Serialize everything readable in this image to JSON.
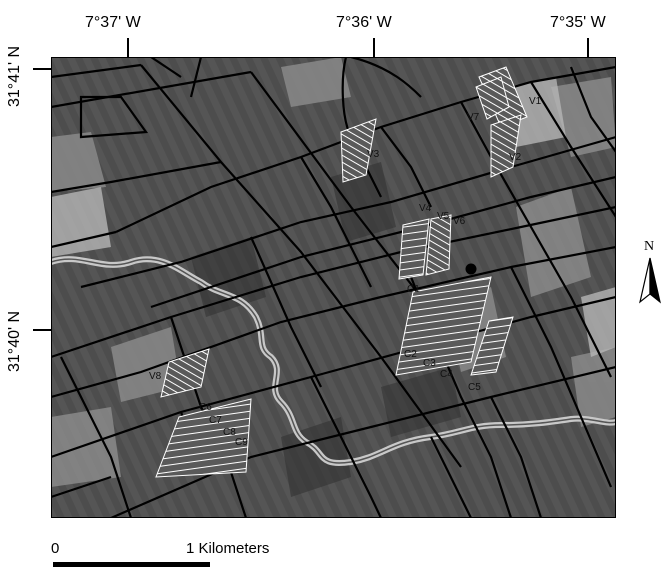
{
  "map": {
    "longitude_labels": [
      "7°37' W",
      "7°36' W",
      "7°35' W"
    ],
    "latitude_labels": [
      "31°41' N",
      "31°40' N"
    ],
    "north_arrow_label": "N",
    "field_labels": [
      "V1",
      "V2",
      "V3",
      "V4",
      "V5",
      "V6",
      "V7",
      "V8",
      "C1",
      "C2",
      "C3",
      "C4",
      "C5",
      "C6",
      "C7",
      "C8",
      "C9"
    ],
    "scale_bar": {
      "start_label": "0",
      "end_label": "1 Kilometers"
    },
    "colors": {
      "background_dark": "#4a4a4a",
      "field_border": "#000000",
      "river": "#c8c8c8",
      "hatch": "#ffffff"
    }
  }
}
